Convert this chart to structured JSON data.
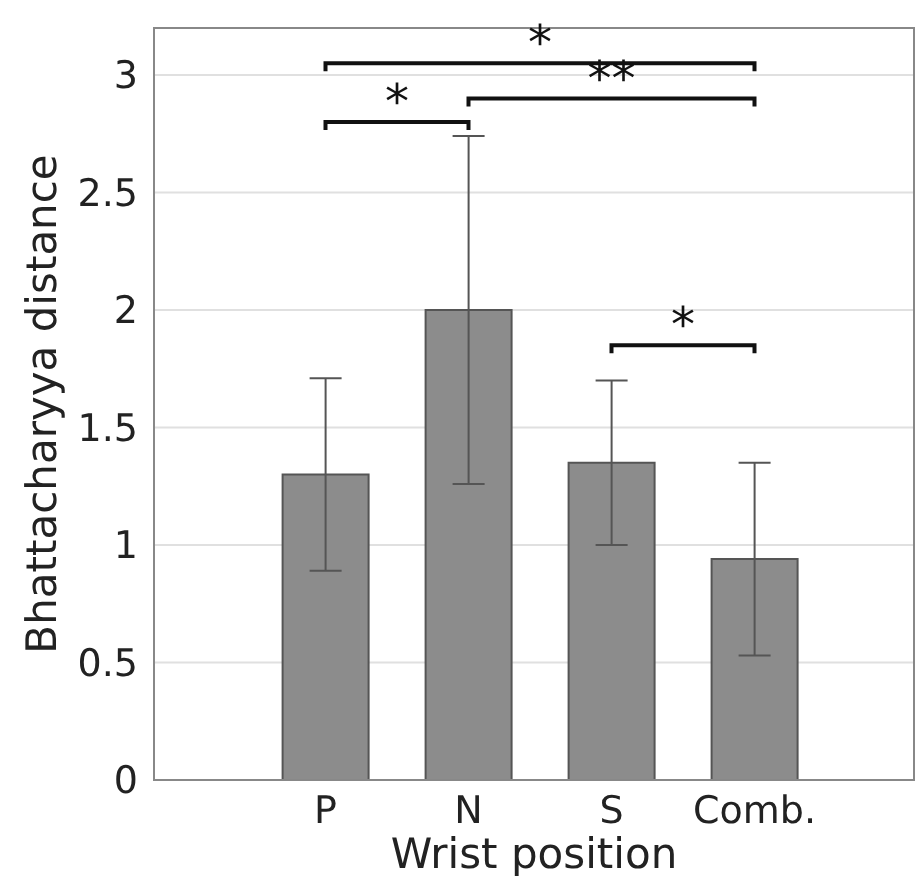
{
  "chart_data": {
    "type": "bar",
    "xlabel": "Wrist position",
    "ylabel": "Bhattacharyya distance",
    "categories": [
      "P",
      "N",
      "S",
      "Comb."
    ],
    "values": [
      1.3,
      2.0,
      1.35,
      0.94
    ],
    "color": "#8c8c8c",
    "errors": [
      [
        0.89,
        1.71
      ],
      [
        1.26,
        2.74
      ],
      [
        1.0,
        1.7
      ],
      [
        0.53,
        1.35
      ]
    ],
    "ylim": [
      0,
      3.2
    ],
    "yticks": [
      0,
      0.5,
      1,
      1.5,
      2,
      2.5,
      3
    ],
    "grid": "y",
    "annotations": [
      "*",
      "**",
      "*",
      "*"
    ]
  }
}
